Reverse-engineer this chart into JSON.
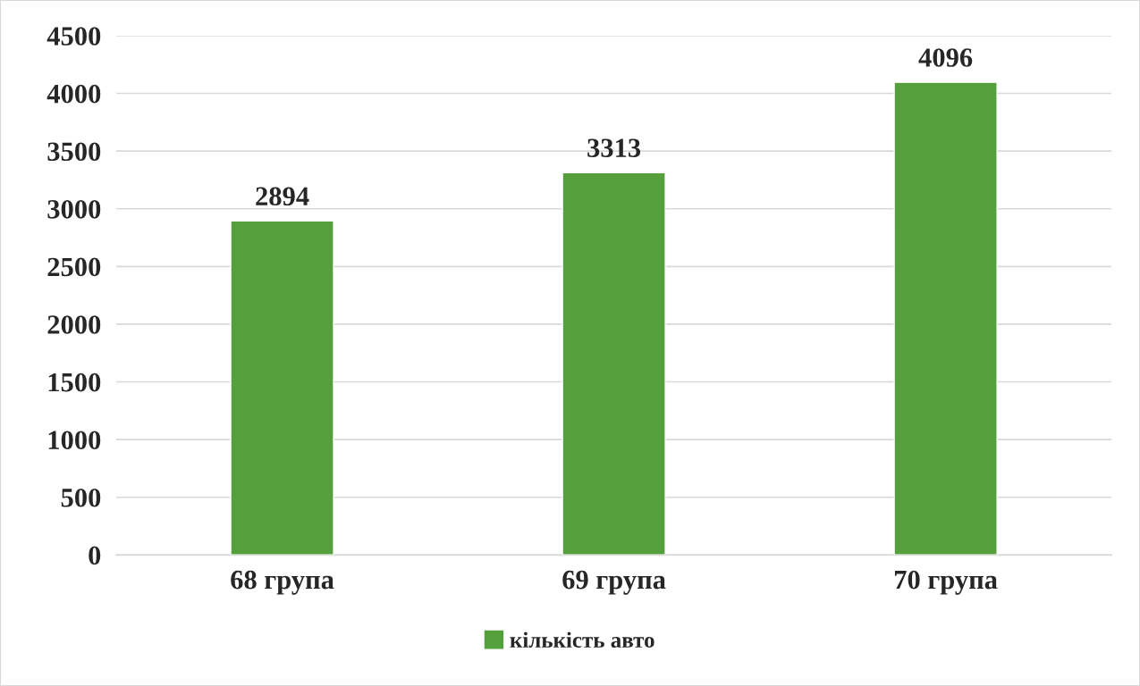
{
  "chart_data": {
    "type": "bar",
    "categories": [
      "68 група",
      "69 група",
      "70 група"
    ],
    "series": [
      {
        "name": "кількість авто",
        "color": "#55a03c",
        "values": [
          2894,
          3313,
          4096
        ]
      }
    ],
    "ylim": [
      0,
      4500
    ],
    "yticks": [
      0,
      500,
      1000,
      1500,
      2000,
      2500,
      3000,
      3500,
      4000,
      4500
    ],
    "grid": "y",
    "legend": "bottom",
    "data_labels": true
  }
}
